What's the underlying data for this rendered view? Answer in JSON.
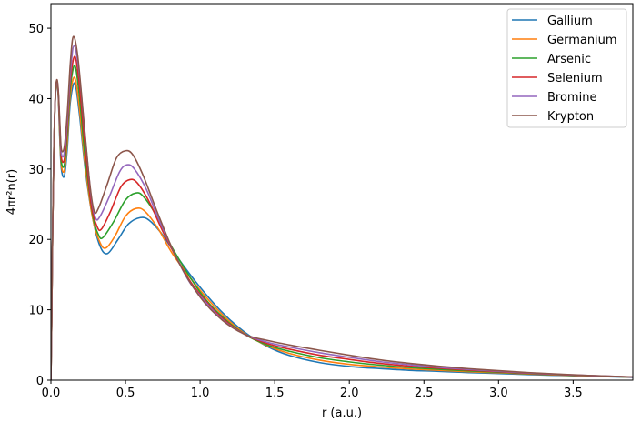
{
  "chart_data": {
    "type": "line",
    "xlabel": "r (a.u.)",
    "ylabel": "4πr²n(r)",
    "xlim": [
      0.0,
      3.9
    ],
    "ylim": [
      0,
      53.5
    ],
    "xticks": [
      "0.0",
      "0.5",
      "1.0",
      "1.5",
      "2.0",
      "2.5",
      "3.0",
      "3.5"
    ],
    "yticks": [
      "0",
      "10",
      "20",
      "30",
      "40",
      "50"
    ],
    "grid": false,
    "legend_position": "top-right",
    "series": [
      {
        "name": "Gallium",
        "color": "#1f77b4",
        "points": [
          [
            0.0,
            0
          ],
          [
            0.005,
            8
          ],
          [
            0.012,
            22
          ],
          [
            0.02,
            33
          ],
          [
            0.03,
            40
          ],
          [
            0.04,
            42.3
          ],
          [
            0.05,
            40
          ],
          [
            0.06,
            34
          ],
          [
            0.07,
            30
          ],
          [
            0.09,
            29
          ],
          [
            0.11,
            33
          ],
          [
            0.13,
            39.5
          ],
          [
            0.16,
            42.2
          ],
          [
            0.19,
            38
          ],
          [
            0.23,
            30
          ],
          [
            0.28,
            23
          ],
          [
            0.33,
            19
          ],
          [
            0.38,
            18
          ],
          [
            0.45,
            20
          ],
          [
            0.52,
            22.2
          ],
          [
            0.6,
            23.1
          ],
          [
            0.66,
            22.7
          ],
          [
            0.75,
            20.6
          ],
          [
            0.85,
            17.4
          ],
          [
            1.0,
            13.2
          ],
          [
            1.15,
            9.6
          ],
          [
            1.3,
            6.8
          ],
          [
            1.45,
            4.8
          ],
          [
            1.6,
            3.5
          ],
          [
            1.8,
            2.5
          ],
          [
            2.0,
            1.95
          ],
          [
            2.2,
            1.65
          ],
          [
            2.4,
            1.4
          ],
          [
            2.6,
            1.25
          ],
          [
            2.8,
            1.08
          ],
          [
            3.0,
            0.95
          ],
          [
            3.2,
            0.8
          ],
          [
            3.4,
            0.68
          ],
          [
            3.6,
            0.57
          ],
          [
            3.9,
            0.4
          ]
        ]
      },
      {
        "name": "Germanium",
        "color": "#ff7f0e",
        "points": [
          [
            0.0,
            0
          ],
          [
            0.005,
            8
          ],
          [
            0.012,
            22
          ],
          [
            0.02,
            33
          ],
          [
            0.03,
            40.2
          ],
          [
            0.04,
            42.4
          ],
          [
            0.05,
            40.2
          ],
          [
            0.06,
            34.5
          ],
          [
            0.07,
            30.5
          ],
          [
            0.09,
            29.8
          ],
          [
            0.11,
            34
          ],
          [
            0.13,
            40.5
          ],
          [
            0.16,
            43
          ],
          [
            0.19,
            38.8
          ],
          [
            0.23,
            30.5
          ],
          [
            0.28,
            23
          ],
          [
            0.33,
            19.5
          ],
          [
            0.37,
            18.8
          ],
          [
            0.43,
            20.5
          ],
          [
            0.5,
            23.3
          ],
          [
            0.57,
            24.4
          ],
          [
            0.63,
            24
          ],
          [
            0.72,
            21.5
          ],
          [
            0.82,
            17.8
          ],
          [
            1.0,
            12.8
          ],
          [
            1.15,
            9.3
          ],
          [
            1.3,
            6.6
          ],
          [
            1.45,
            4.9
          ],
          [
            1.6,
            3.8
          ],
          [
            1.8,
            2.85
          ],
          [
            2.0,
            2.25
          ],
          [
            2.2,
            1.9
          ],
          [
            2.4,
            1.6
          ],
          [
            2.6,
            1.4
          ],
          [
            2.8,
            1.2
          ],
          [
            3.0,
            1.05
          ],
          [
            3.2,
            0.88
          ],
          [
            3.4,
            0.73
          ],
          [
            3.6,
            0.6
          ],
          [
            3.9,
            0.42
          ]
        ]
      },
      {
        "name": "Arsenic",
        "color": "#2ca02c",
        "points": [
          [
            0.0,
            0
          ],
          [
            0.005,
            8
          ],
          [
            0.012,
            22
          ],
          [
            0.02,
            33
          ],
          [
            0.03,
            40.3
          ],
          [
            0.04,
            42.5
          ],
          [
            0.05,
            40.4
          ],
          [
            0.06,
            35
          ],
          [
            0.07,
            31
          ],
          [
            0.09,
            30.6
          ],
          [
            0.11,
            35
          ],
          [
            0.13,
            41.5
          ],
          [
            0.16,
            44.7
          ],
          [
            0.19,
            40.5
          ],
          [
            0.23,
            31.5
          ],
          [
            0.28,
            23.5
          ],
          [
            0.32,
            20.6
          ],
          [
            0.35,
            20.3
          ],
          [
            0.42,
            22.5
          ],
          [
            0.5,
            25.6
          ],
          [
            0.57,
            26.6
          ],
          [
            0.62,
            26.1
          ],
          [
            0.7,
            23.6
          ],
          [
            0.8,
            19.3
          ],
          [
            1.0,
            12.5
          ],
          [
            1.15,
            9
          ],
          [
            1.3,
            6.5
          ],
          [
            1.45,
            5
          ],
          [
            1.6,
            4.1
          ],
          [
            1.8,
            3.2
          ],
          [
            2.0,
            2.6
          ],
          [
            2.2,
            2.15
          ],
          [
            2.4,
            1.8
          ],
          [
            2.6,
            1.55
          ],
          [
            2.8,
            1.32
          ],
          [
            3.0,
            1.12
          ],
          [
            3.2,
            0.93
          ],
          [
            3.4,
            0.77
          ],
          [
            3.6,
            0.63
          ],
          [
            3.9,
            0.43
          ]
        ]
      },
      {
        "name": "Selenium",
        "color": "#d62728",
        "points": [
          [
            0.0,
            0
          ],
          [
            0.005,
            8
          ],
          [
            0.012,
            22
          ],
          [
            0.02,
            33
          ],
          [
            0.03,
            40.4
          ],
          [
            0.04,
            42.6
          ],
          [
            0.05,
            40.6
          ],
          [
            0.06,
            35.5
          ],
          [
            0.07,
            31.6
          ],
          [
            0.09,
            31.4
          ],
          [
            0.11,
            36
          ],
          [
            0.13,
            42.5
          ],
          [
            0.16,
            46
          ],
          [
            0.19,
            42
          ],
          [
            0.23,
            33
          ],
          [
            0.27,
            25
          ],
          [
            0.31,
            21.8
          ],
          [
            0.34,
            21.5
          ],
          [
            0.4,
            24
          ],
          [
            0.47,
            27.5
          ],
          [
            0.53,
            28.5
          ],
          [
            0.58,
            28
          ],
          [
            0.66,
            25.3
          ],
          [
            0.76,
            20.7
          ],
          [
            0.9,
            15.2
          ],
          [
            1.0,
            12.2
          ],
          [
            1.15,
            8.8
          ],
          [
            1.3,
            6.5
          ],
          [
            1.45,
            5.2
          ],
          [
            1.6,
            4.4
          ],
          [
            1.8,
            3.55
          ],
          [
            2.0,
            2.95
          ],
          [
            2.2,
            2.4
          ],
          [
            2.4,
            2.0
          ],
          [
            2.6,
            1.7
          ],
          [
            2.8,
            1.43
          ],
          [
            3.0,
            1.2
          ],
          [
            3.2,
            0.98
          ],
          [
            3.4,
            0.8
          ],
          [
            3.6,
            0.65
          ],
          [
            3.9,
            0.44
          ]
        ]
      },
      {
        "name": "Bromine",
        "color": "#9467bd",
        "points": [
          [
            0.0,
            0
          ],
          [
            0.005,
            8
          ],
          [
            0.012,
            22
          ],
          [
            0.02,
            33
          ],
          [
            0.03,
            40.5
          ],
          [
            0.04,
            42.6
          ],
          [
            0.05,
            40.8
          ],
          [
            0.06,
            36
          ],
          [
            0.07,
            32.2
          ],
          [
            0.09,
            32.3
          ],
          [
            0.11,
            37
          ],
          [
            0.13,
            43.5
          ],
          [
            0.155,
            47.5
          ],
          [
            0.19,
            43.5
          ],
          [
            0.23,
            34.5
          ],
          [
            0.27,
            26
          ],
          [
            0.3,
            23
          ],
          [
            0.33,
            23.3
          ],
          [
            0.39,
            26
          ],
          [
            0.46,
            29.6
          ],
          [
            0.51,
            30.6
          ],
          [
            0.56,
            30
          ],
          [
            0.64,
            27.1
          ],
          [
            0.74,
            22
          ],
          [
            0.9,
            15
          ],
          [
            1.0,
            12
          ],
          [
            1.15,
            8.6
          ],
          [
            1.3,
            6.5
          ],
          [
            1.45,
            5.4
          ],
          [
            1.6,
            4.7
          ],
          [
            1.8,
            3.9
          ],
          [
            2.0,
            3.25
          ],
          [
            2.2,
            2.65
          ],
          [
            2.4,
            2.2
          ],
          [
            2.6,
            1.82
          ],
          [
            2.8,
            1.53
          ],
          [
            3.0,
            1.27
          ],
          [
            3.2,
            1.03
          ],
          [
            3.4,
            0.83
          ],
          [
            3.6,
            0.67
          ],
          [
            3.9,
            0.45
          ]
        ]
      },
      {
        "name": "Krypton",
        "color": "#8c564b",
        "points": [
          [
            0.0,
            0
          ],
          [
            0.005,
            8
          ],
          [
            0.012,
            22
          ],
          [
            0.02,
            33
          ],
          [
            0.03,
            40.6
          ],
          [
            0.04,
            42.7
          ],
          [
            0.05,
            41
          ],
          [
            0.06,
            36.5
          ],
          [
            0.07,
            32.8
          ],
          [
            0.09,
            33.2
          ],
          [
            0.11,
            38
          ],
          [
            0.13,
            45
          ],
          [
            0.15,
            48.8
          ],
          [
            0.18,
            46
          ],
          [
            0.22,
            37
          ],
          [
            0.26,
            28
          ],
          [
            0.29,
            24
          ],
          [
            0.32,
            24.5
          ],
          [
            0.38,
            28
          ],
          [
            0.44,
            31.6
          ],
          [
            0.5,
            32.6
          ],
          [
            0.55,
            32
          ],
          [
            0.62,
            29
          ],
          [
            0.72,
            23.5
          ],
          [
            0.85,
            17
          ],
          [
            1.0,
            11.8
          ],
          [
            1.15,
            8.5
          ],
          [
            1.3,
            6.5
          ],
          [
            1.45,
            5.65
          ],
          [
            1.6,
            5.0
          ],
          [
            1.8,
            4.25
          ],
          [
            2.0,
            3.55
          ],
          [
            2.2,
            2.9
          ],
          [
            2.4,
            2.4
          ],
          [
            2.6,
            1.98
          ],
          [
            2.8,
            1.63
          ],
          [
            3.0,
            1.35
          ],
          [
            3.2,
            1.08
          ],
          [
            3.4,
            0.86
          ],
          [
            3.6,
            0.68
          ],
          [
            3.9,
            0.46
          ]
        ]
      }
    ]
  }
}
